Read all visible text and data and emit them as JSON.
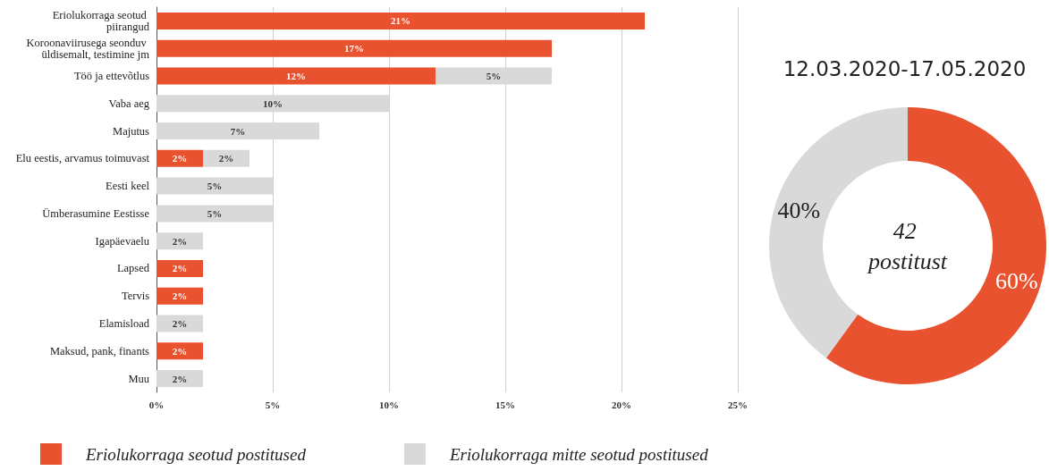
{
  "chart_data": [
    {
      "type": "bar",
      "orientation": "horizontal",
      "stacked": true,
      "categories": [
        "Eriolukorraga seotud piirangud",
        "Koroonaviirusega seonduv üldisemalt, testimine jm",
        "Töö ja ettevõtlus",
        "Vaba aeg",
        "Majutus",
        "Elu eestis, arvamus toimuvast",
        "Eesti keel",
        "Ümberasumine Eestisse",
        "Igapäevaelu",
        "Lapsed",
        "Tervis",
        "Elamisload",
        "Maksud, pank, finants",
        "Muu"
      ],
      "series": [
        {
          "name": "Eriolukorraga seotud postitused",
          "color": "#e8522f",
          "values": [
            21,
            17,
            12,
            null,
            null,
            2,
            null,
            null,
            null,
            2,
            2,
            null,
            2,
            null
          ],
          "value_labels": [
            "21%",
            "17%",
            "12%",
            null,
            null,
            "2%",
            null,
            null,
            null,
            "2%",
            "2%",
            null,
            "2%",
            null
          ]
        },
        {
          "name": "Eriolukorraga mitte seotud postitused",
          "color": "#d9d9d9",
          "values": [
            null,
            null,
            5,
            10,
            7,
            2,
            5,
            5,
            2,
            null,
            null,
            2,
            null,
            2
          ],
          "value_labels": [
            null,
            null,
            "5%",
            "10%",
            "7%",
            "2%",
            "5%",
            "5%",
            "2%",
            null,
            null,
            "2%",
            null,
            "2%"
          ]
        }
      ],
      "xlim": [
        0,
        25
      ],
      "xticks": [
        {
          "value": 0,
          "label": "0%"
        },
        {
          "value": 5,
          "label": "5%"
        },
        {
          "value": 10,
          "label": "10%"
        },
        {
          "value": 15,
          "label": "15%"
        },
        {
          "value": 20,
          "label": "20%"
        },
        {
          "value": 25,
          "label": "25%"
        }
      ],
      "grid": "x",
      "legend": "bottom"
    },
    {
      "type": "donut",
      "title": "12.03.2020-17.05.2020",
      "categories": [
        null,
        null
      ],
      "values": [
        60,
        40
      ],
      "colors": [
        "#e8522f",
        "#d9d9d9"
      ],
      "value_labels": [
        "60%",
        "40%"
      ],
      "annotations": [
        "42 postitust"
      ]
    }
  ]
}
